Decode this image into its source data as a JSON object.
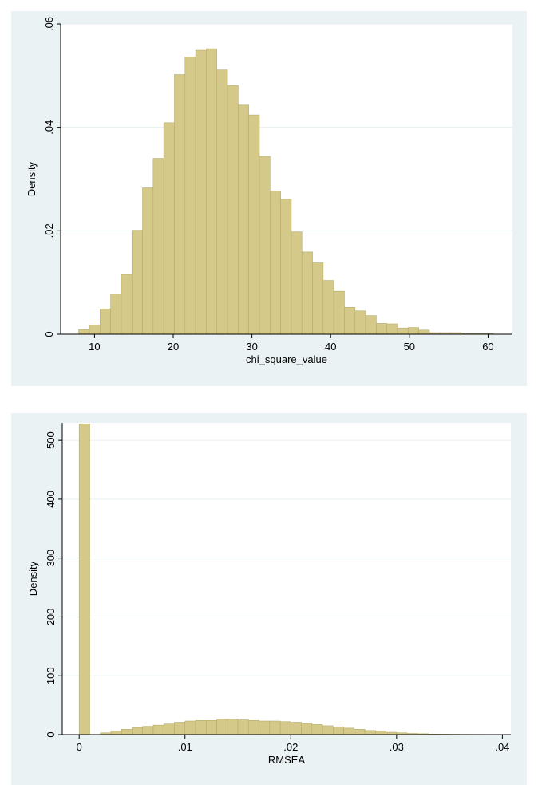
{
  "chart_data": [
    {
      "type": "bar",
      "title": "",
      "xlabel": "chi_square_value",
      "ylabel": "Density",
      "xlim": [
        5.7,
        63.1
      ],
      "ylim": [
        0,
        0.06
      ],
      "xticks": [
        10,
        20,
        30,
        40,
        50,
        60
      ],
      "xtick_labels": [
        "10",
        "20",
        "30",
        "40",
        "50",
        "60"
      ],
      "yticks": [
        0,
        0.02,
        0.04,
        0.06
      ],
      "ytick_labels": [
        "0",
        ".02",
        ".04",
        ".06"
      ],
      "grid": true,
      "legend": "none",
      "bar_color": "#d4c989",
      "bar_edge_color": "#b7ab6c",
      "bin_width": 1.35,
      "bin_starts": [
        8.0,
        9.35,
        10.7,
        12.05,
        13.4,
        14.75,
        16.1,
        17.45,
        18.8,
        20.15,
        21.5,
        22.85,
        24.2,
        25.55,
        26.9,
        28.25,
        29.6,
        30.95,
        32.3,
        33.65,
        35.0,
        36.35,
        37.7,
        39.05,
        40.4,
        41.75,
        43.1,
        44.45,
        45.8,
        47.15,
        48.5,
        49.85,
        51.2,
        52.55,
        53.9,
        55.25,
        56.6,
        57.95,
        59.3
      ],
      "values": [
        0.0009,
        0.0018,
        0.0049,
        0.0078,
        0.0115,
        0.0201,
        0.0283,
        0.034,
        0.0409,
        0.0502,
        0.0536,
        0.0549,
        0.0552,
        0.0511,
        0.0481,
        0.0443,
        0.0424,
        0.0344,
        0.0277,
        0.0261,
        0.0198,
        0.0159,
        0.0138,
        0.0104,
        0.0083,
        0.0052,
        0.0045,
        0.0036,
        0.0021,
        0.002,
        0.0012,
        0.0013,
        0.0008,
        0.0003,
        0.0003,
        0.0003,
        0.0001,
        0.0001,
        0.0001
      ]
    },
    {
      "type": "bar",
      "title": "",
      "xlabel": "RMSEA",
      "ylabel": "Density",
      "xlim": [
        -0.0016,
        0.0408
      ],
      "ylim": [
        0,
        530
      ],
      "xticks": [
        0,
        0.01,
        0.02,
        0.03,
        0.04
      ],
      "xtick_labels": [
        "0",
        ".01",
        ".02",
        ".03",
        ".04"
      ],
      "yticks": [
        0,
        100,
        200,
        300,
        400,
        500
      ],
      "ytick_labels": [
        "0",
        "100",
        "200",
        "300",
        "400",
        "500"
      ],
      "grid": true,
      "legend": "none",
      "bar_color": "#d4c989",
      "bar_edge_color": "#b7ab6c",
      "bin_width": 0.001,
      "bin_starts": [
        0.0,
        0.001,
        0.002,
        0.003,
        0.004,
        0.005,
        0.006,
        0.007,
        0.008,
        0.009,
        0.01,
        0.011,
        0.012,
        0.013,
        0.014,
        0.015,
        0.016,
        0.017,
        0.018,
        0.019,
        0.02,
        0.021,
        0.022,
        0.023,
        0.024,
        0.025,
        0.026,
        0.027,
        0.028,
        0.029,
        0.03,
        0.031,
        0.032,
        0.033,
        0.034,
        0.035,
        0.036,
        0.037
      ],
      "values": [
        528,
        0,
        3,
        6,
        9,
        12,
        14,
        16,
        18,
        21,
        23,
        24,
        24,
        26,
        26,
        25,
        24,
        23,
        23,
        22,
        21,
        19,
        17,
        15,
        13,
        11,
        9,
        7,
        6,
        4,
        3,
        2,
        1.5,
        1,
        0.8,
        0.6,
        0.4,
        0.3
      ]
    }
  ]
}
